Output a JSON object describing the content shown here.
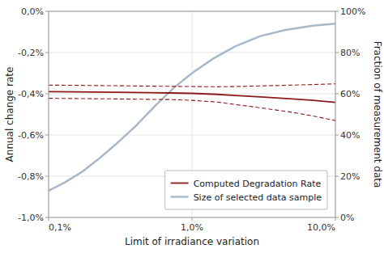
{
  "chart_data": {
    "type": "line",
    "xlabel": "Limit of irradiance variation",
    "ylabel": "Annual change rate",
    "y2label": "Fraction of measurement data",
    "log": "x",
    "xlim": [
      0.1,
      10.0
    ],
    "xticks": [
      {
        "value": 0.1,
        "label": "0,1%"
      },
      {
        "value": 1.0,
        "label": "1,0%"
      },
      {
        "value": 10.0,
        "label": "10,0%"
      }
    ],
    "ylim": [
      -1.0,
      0.0
    ],
    "yticks": [
      {
        "value": 0.0,
        "label": "0,0%"
      },
      {
        "value": -0.2,
        "label": "-0,2%"
      },
      {
        "value": -0.4,
        "label": "-0,4%"
      },
      {
        "value": -0.6,
        "label": "-0,6%"
      },
      {
        "value": -0.8,
        "label": "-0,8%"
      },
      {
        "value": -1.0,
        "label": "-1,0%"
      }
    ],
    "y2lim": [
      0,
      100
    ],
    "y2ticks": [
      {
        "value": 0,
        "label": "0%"
      },
      {
        "value": 20,
        "label": "20%"
      },
      {
        "value": 40,
        "label": "40%"
      },
      {
        "value": 60,
        "label": "60%"
      },
      {
        "value": 80,
        "label": "80%"
      },
      {
        "value": 100,
        "label": "100%"
      }
    ],
    "grid": true,
    "legend": "lower right",
    "series": [
      {
        "name": "Computed Degradation Rate",
        "color": "#8B1A1A",
        "line_style": "solid",
        "x": [
          0.1,
          0.15,
          0.2,
          0.3,
          0.5,
          0.7,
          1.0,
          1.5,
          2.0,
          3.0,
          5.0,
          7.0,
          10.0
        ],
        "values": [
          -0.39,
          -0.391,
          -0.392,
          -0.393,
          -0.395,
          -0.396,
          -0.398,
          -0.403,
          -0.408,
          -0.415,
          -0.425,
          -0.432,
          -0.442
        ]
      },
      {
        "color": "#8B1A1A",
        "line_style": "dashed",
        "x": [
          0.1,
          0.15,
          0.2,
          0.3,
          0.5,
          0.7,
          1.0,
          1.5,
          2.0,
          3.0,
          5.0,
          7.0,
          10.0
        ],
        "values": [
          -0.358,
          -0.359,
          -0.36,
          -0.361,
          -0.363,
          -0.364,
          -0.365,
          -0.366,
          -0.365,
          -0.362,
          -0.358,
          -0.355,
          -0.352
        ]
      },
      {
        "color": "#8B1A1A",
        "line_style": "dashed",
        "x": [
          0.1,
          0.15,
          0.2,
          0.3,
          0.5,
          0.7,
          1.0,
          1.5,
          2.0,
          3.0,
          5.0,
          7.0,
          10.0
        ],
        "values": [
          -0.422,
          -0.423,
          -0.424,
          -0.425,
          -0.427,
          -0.428,
          -0.432,
          -0.44,
          -0.452,
          -0.468,
          -0.49,
          -0.508,
          -0.53
        ]
      },
      {
        "name": "Size of selected data sample",
        "color": "#A8B8C8",
        "line_style": "solid",
        "axis": "y2",
        "x": [
          0.1,
          0.13,
          0.17,
          0.22,
          0.3,
          0.4,
          0.55,
          0.75,
          1.0,
          1.4,
          2.0,
          3.0,
          4.5,
          7.0,
          10.0
        ],
        "values": [
          13,
          17,
          22,
          28,
          36,
          44,
          54,
          63,
          70,
          77,
          83,
          88,
          91,
          93,
          94
        ]
      }
    ]
  }
}
